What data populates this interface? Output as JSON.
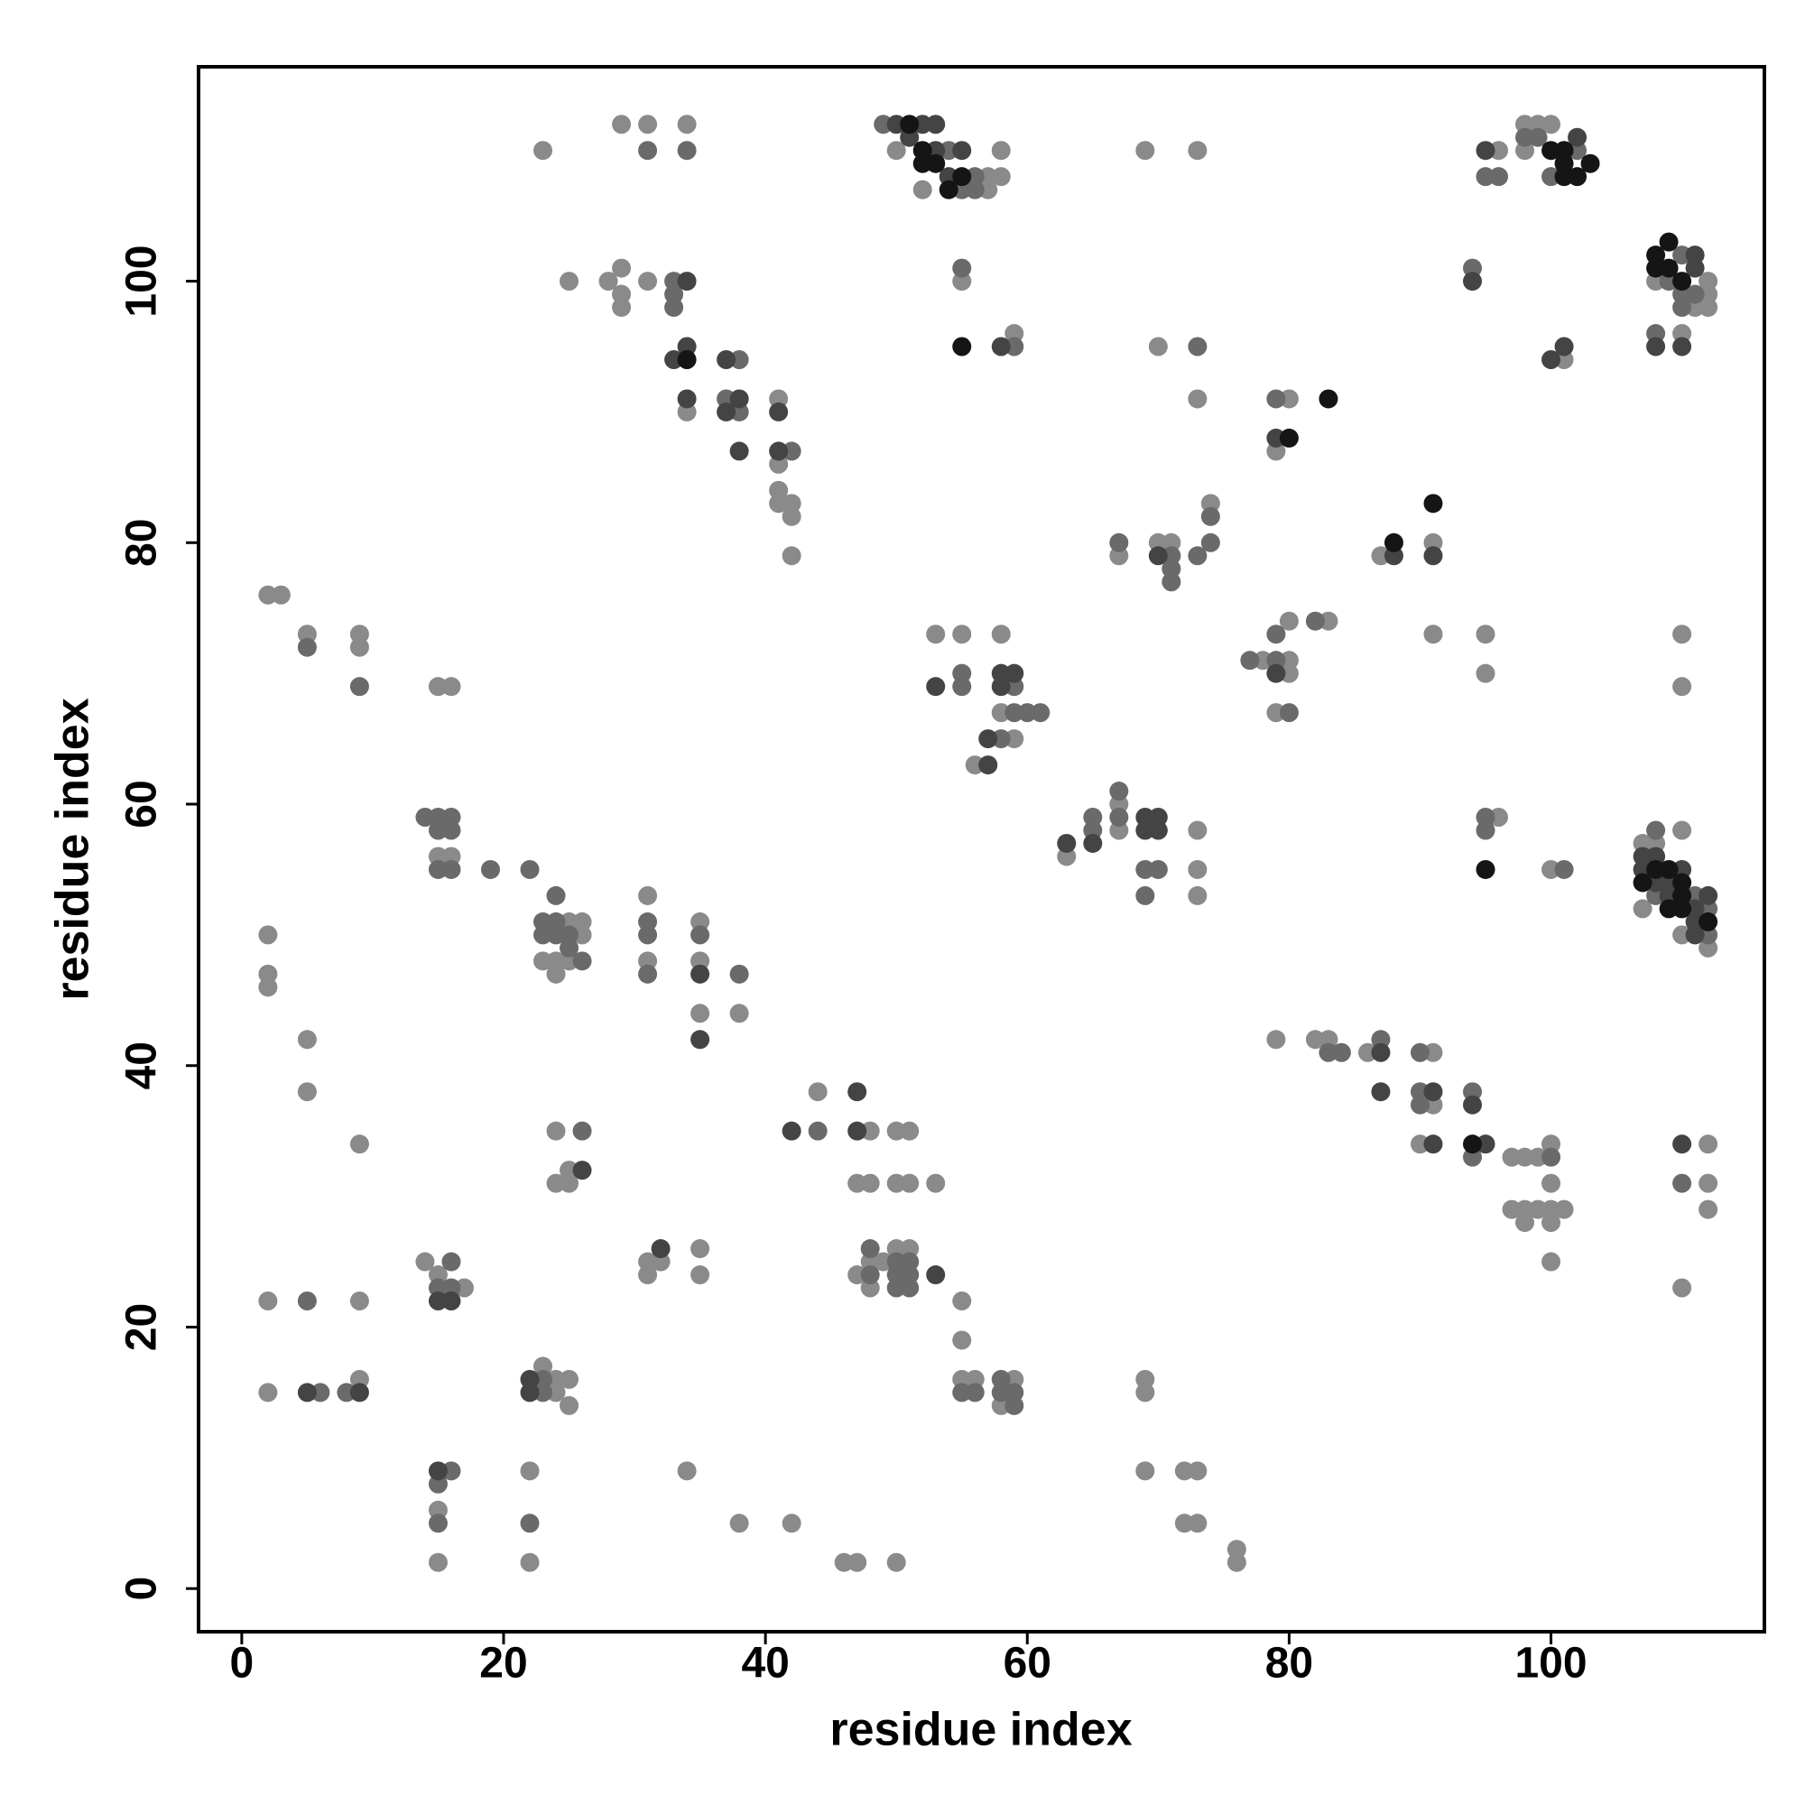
{
  "chart_data": {
    "type": "scatter",
    "x_label": "residue index",
    "y_label": "residue index",
    "xlim": [
      -3.3,
      116.3
    ],
    "ylim": [
      -3.3,
      116.4
    ],
    "xticks": [
      0,
      20,
      40,
      60,
      80,
      100
    ],
    "yticks": [
      0,
      20,
      40,
      60,
      80,
      100
    ],
    "series": [
      {
        "color": "#8a8a8a",
        "x": [
          29,
          31,
          34,
          23,
          50,
          57,
          52,
          58,
          58,
          57,
          69,
          73,
          96,
          98,
          99,
          100,
          98,
          25,
          28,
          29,
          29,
          29,
          31,
          55,
          108,
          112,
          112,
          111,
          112,
          110,
          59,
          70,
          101,
          34,
          41,
          41,
          41,
          41,
          42,
          42,
          42,
          73,
          80,
          79,
          67,
          70,
          71,
          74,
          87,
          91,
          91,
          95,
          95,
          110,
          110,
          2,
          3,
          5,
          9,
          9,
          15,
          16,
          53,
          55,
          58,
          58,
          59,
          56,
          78,
          80,
          80,
          79,
          80,
          83,
          15,
          16,
          63,
          67,
          67,
          73,
          73,
          73,
          96,
          100,
          107,
          108,
          110,
          112,
          107,
          110,
          2,
          2,
          2,
          25,
          26,
          26,
          23,
          24,
          25,
          24,
          31,
          31,
          35,
          35,
          35,
          38,
          5,
          5,
          9,
          79,
          82,
          83,
          86,
          91,
          91,
          90,
          97,
          98,
          99,
          100,
          100,
          97,
          98,
          99,
          100,
          101,
          98,
          100,
          100,
          112,
          112,
          112,
          110,
          44,
          48,
          50,
          51,
          47,
          48,
          50,
          51,
          53,
          24,
          24,
          25,
          25,
          48,
          50,
          51,
          47,
          48,
          49,
          55,
          55,
          31,
          31,
          32,
          35,
          35,
          14,
          15,
          17,
          2,
          9,
          2,
          9,
          24,
          24,
          25,
          25,
          23,
          55,
          56,
          59,
          58,
          69,
          69,
          15,
          15,
          22,
          22,
          34,
          38,
          42,
          46,
          47,
          50,
          69,
          72,
          73,
          72,
          73,
          76,
          76
        ],
        "values": [
          112,
          112,
          112,
          110,
          110,
          107,
          107,
          110,
          108,
          108,
          110,
          110,
          110,
          112,
          112,
          112,
          110,
          100,
          100,
          101,
          99,
          98,
          100,
          100,
          100,
          100,
          99,
          98,
          98,
          96,
          96,
          95,
          94,
          90,
          91,
          86,
          84,
          83,
          83,
          82,
          79,
          91,
          91,
          87,
          79,
          80,
          80,
          83,
          79,
          80,
          73,
          73,
          70,
          73,
          69,
          76,
          76,
          73,
          73,
          72,
          69,
          69,
          73,
          73,
          73,
          67,
          65,
          63,
          71,
          71,
          70,
          67,
          74,
          74,
          56,
          56,
          56,
          60,
          58,
          58,
          55,
          53,
          59,
          55,
          57,
          57,
          50,
          49,
          52,
          58,
          50,
          47,
          46,
          51,
          51,
          50,
          48,
          48,
          48,
          47,
          53,
          48,
          51,
          48,
          44,
          44,
          42,
          38,
          34,
          42,
          42,
          42,
          41,
          41,
          37,
          34,
          33,
          33,
          33,
          34,
          31,
          29,
          29,
          29,
          29,
          29,
          28,
          28,
          25,
          34,
          31,
          29,
          23,
          38,
          35,
          35,
          35,
          31,
          31,
          31,
          31,
          31,
          35,
          31,
          32,
          31,
          25,
          26,
          26,
          24,
          23,
          25,
          22,
          19,
          25,
          24,
          25,
          26,
          24,
          25,
          24,
          23,
          22,
          22,
          15,
          16,
          15,
          16,
          16,
          14,
          17,
          16,
          16,
          16,
          14,
          16,
          15,
          6,
          2,
          9,
          2,
          9,
          5,
          5,
          2,
          2,
          2,
          9,
          9,
          9,
          5,
          5,
          3,
          2
        ]
      },
      {
        "color": "#6a6a6a",
        "x": [
          31,
          34,
          49,
          54,
          56,
          55,
          56,
          95,
          96,
          98,
          99,
          100,
          102,
          33,
          33,
          33,
          55,
          94,
          110,
          109,
          110,
          111,
          110,
          108,
          59,
          73,
          38,
          37,
          38,
          42,
          79,
          67,
          71,
          71,
          71,
          73,
          74,
          74,
          5,
          9,
          55,
          55,
          59,
          59,
          60,
          61,
          58,
          77,
          79,
          80,
          79,
          82,
          14,
          15,
          16,
          15,
          16,
          15,
          16,
          19,
          22,
          65,
          65,
          67,
          67,
          69,
          70,
          69,
          95,
          95,
          101,
          108,
          108,
          111,
          112,
          112,
          23,
          24,
          23,
          24,
          25,
          24,
          25,
          26,
          31,
          31,
          31,
          35,
          38,
          83,
          84,
          87,
          90,
          90,
          90,
          94,
          94,
          100,
          110,
          44,
          26,
          48,
          48,
          50,
          51,
          50,
          51,
          50,
          51,
          16,
          15,
          16,
          5,
          6,
          8,
          23,
          23,
          55,
          56,
          58,
          58,
          59,
          59,
          16,
          15,
          15,
          22
        ],
        "values": [
          110,
          110,
          112,
          110,
          108,
          107,
          107,
          108,
          108,
          111,
          111,
          108,
          110,
          100,
          99,
          98,
          101,
          101,
          102,
          100,
          99,
          99,
          98,
          96,
          95,
          95,
          94,
          91,
          90,
          87,
          91,
          80,
          79,
          78,
          77,
          79,
          80,
          82,
          72,
          69,
          70,
          69,
          69,
          67,
          67,
          67,
          65,
          71,
          71,
          67,
          73,
          74,
          59,
          59,
          59,
          58,
          58,
          55,
          55,
          55,
          55,
          59,
          58,
          61,
          59,
          55,
          55,
          53,
          59,
          58,
          55,
          58,
          53,
          53,
          52,
          50,
          51,
          51,
          50,
          50,
          50,
          53,
          49,
          48,
          51,
          50,
          47,
          50,
          47,
          41,
          41,
          42,
          41,
          38,
          37,
          38,
          33,
          33,
          31,
          35,
          35,
          26,
          24,
          25,
          25,
          24,
          24,
          23,
          23,
          25,
          23,
          23,
          22,
          15,
          15,
          16,
          15,
          15,
          15,
          16,
          15,
          15,
          14,
          9,
          8,
          5,
          5
        ]
      },
      {
        "color": "#444444",
        "x": [
          50,
          52,
          53,
          51,
          53,
          55,
          54,
          95,
          102,
          34,
          94,
          111,
          111,
          108,
          110,
          34,
          58,
          101,
          100,
          33,
          37,
          34,
          38,
          37,
          41,
          38,
          41,
          79,
          70,
          88,
          91,
          53,
          58,
          59,
          58,
          57,
          57,
          79,
          63,
          65,
          69,
          70,
          69,
          70,
          107,
          108,
          107,
          108,
          110,
          109,
          109,
          112,
          111,
          111,
          111,
          35,
          35,
          87,
          87,
          91,
          91,
          94,
          95,
          110,
          42,
          47,
          47,
          26,
          53,
          32,
          15,
          16,
          5,
          9,
          22,
          22,
          15
        ],
        "values": [
          112,
          112,
          112,
          111,
          110,
          110,
          108,
          110,
          111,
          100,
          100,
          102,
          101,
          95,
          95,
          95,
          95,
          95,
          94,
          94,
          94,
          91,
          91,
          90,
          90,
          87,
          87,
          88,
          79,
          79,
          79,
          69,
          70,
          70,
          69,
          65,
          63,
          70,
          57,
          57,
          59,
          59,
          58,
          58,
          56,
          56,
          55,
          54,
          55,
          54,
          53,
          53,
          52,
          51,
          50,
          47,
          42,
          41,
          38,
          38,
          34,
          37,
          34,
          34,
          35,
          38,
          35,
          32,
          24,
          26,
          22,
          22,
          15,
          15,
          16,
          15,
          9
        ]
      },
      {
        "color": "#151515",
        "x": [
          51,
          52,
          52,
          53,
          55,
          54,
          100,
          101,
          101,
          102,
          101,
          103,
          108,
          109,
          109,
          108,
          110,
          55,
          34,
          80,
          83,
          88,
          91,
          95,
          108,
          107,
          109,
          110,
          109,
          110,
          110,
          112,
          94
        ],
        "values": [
          112,
          110,
          109,
          109,
          108,
          107,
          110,
          110,
          109,
          108,
          108,
          109,
          102,
          103,
          101,
          101,
          100,
          95,
          94,
          88,
          91,
          80,
          83,
          55,
          55,
          54,
          55,
          54,
          52,
          52,
          53,
          51,
          34
        ]
      }
    ]
  }
}
